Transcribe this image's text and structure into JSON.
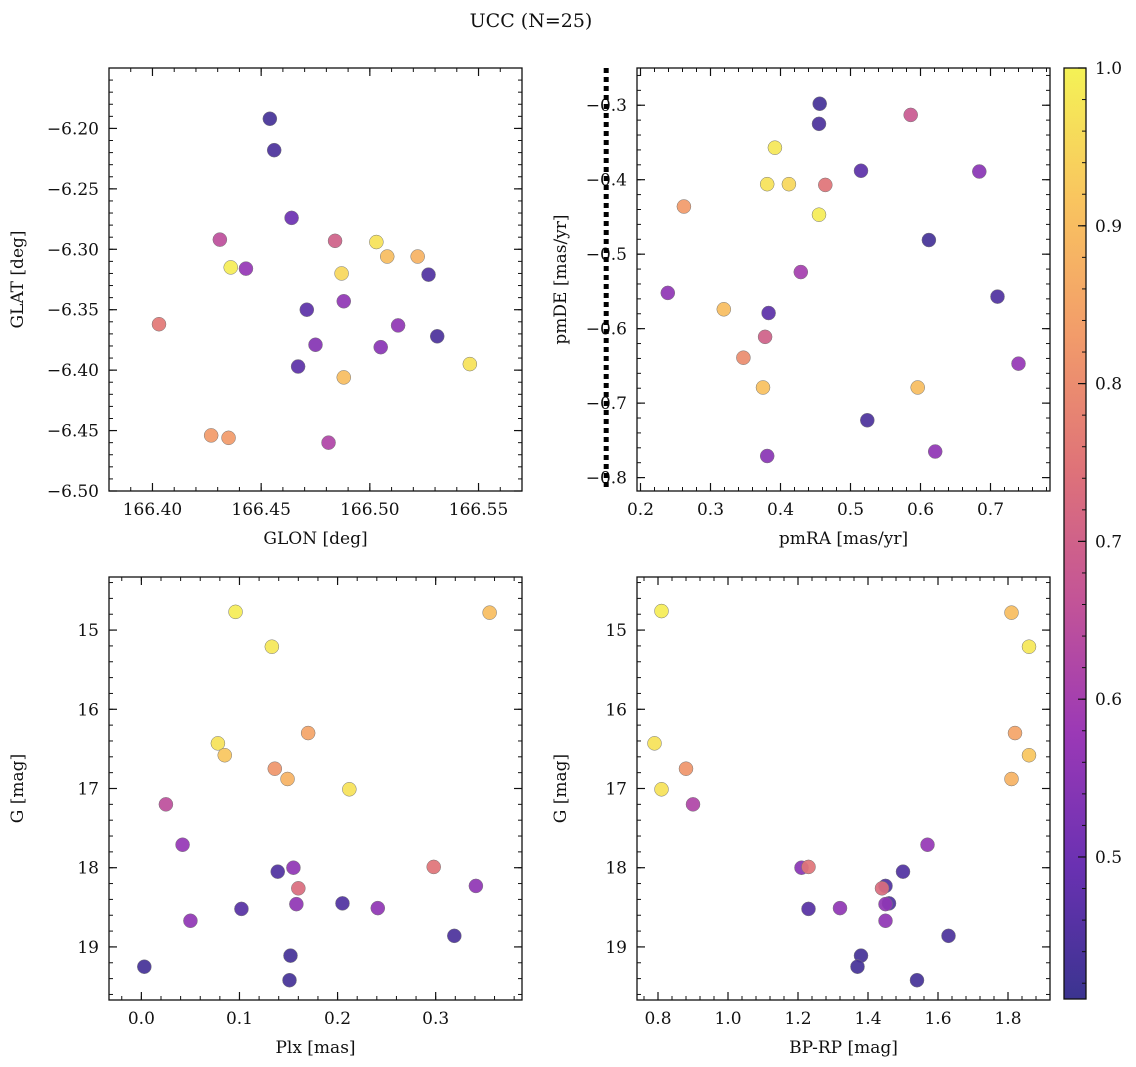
{
  "figure": {
    "title": "UCC (N=25)"
  },
  "colormap": {
    "name": "plasma",
    "stops": [
      "#3b3490",
      "#6a31b2",
      "#9b39b6",
      "#c35497",
      "#df7378",
      "#f29c6a",
      "#f9c45f",
      "#f4f256"
    ],
    "range": [
      0.41,
      1.0
    ],
    "ticks": [
      0.5,
      0.6,
      0.7,
      0.8,
      0.9,
      1.0
    ],
    "tick_labels": [
      "0.5",
      "0.6",
      "0.7",
      "0.8",
      "0.9",
      "1.0"
    ]
  },
  "guide_line": {
    "panel": 2,
    "x": 0.151,
    "style": "dotted",
    "color": "#000000"
  },
  "chart_data": [
    {
      "type": "scatter",
      "xlabel": "GLON [deg]",
      "ylabel": "GLAT [deg]",
      "xlim": [
        166.38,
        166.57
      ],
      "ylim": [
        -6.5,
        -6.15
      ],
      "y_inverted": false,
      "xticks": [
        166.4,
        166.45,
        166.5,
        166.55
      ],
      "xtick_labels": [
        "166.40",
        "166.45",
        "166.50",
        "166.55"
      ],
      "yticks": [
        -6.5,
        -6.45,
        -6.4,
        -6.35,
        -6.3,
        -6.25,
        -6.2
      ],
      "ytick_labels": [
        "−6.50",
        "−6.45",
        "−6.40",
        "−6.35",
        "−6.30",
        "−6.25",
        "−6.20"
      ],
      "points": [
        {
          "x": 166.454,
          "y": -6.192,
          "c": 0.43
        },
        {
          "x": 166.456,
          "y": -6.218,
          "c": 0.44
        },
        {
          "x": 166.464,
          "y": -6.274,
          "c": 0.5
        },
        {
          "x": 166.431,
          "y": -6.292,
          "c": 0.65
        },
        {
          "x": 166.484,
          "y": -6.293,
          "c": 0.7
        },
        {
          "x": 166.503,
          "y": -6.294,
          "c": 0.97
        },
        {
          "x": 166.508,
          "y": -6.306,
          "c": 0.9
        },
        {
          "x": 166.522,
          "y": -6.306,
          "c": 0.88
        },
        {
          "x": 166.436,
          "y": -6.315,
          "c": 0.99
        },
        {
          "x": 166.443,
          "y": -6.316,
          "c": 0.57
        },
        {
          "x": 166.487,
          "y": -6.32,
          "c": 0.95
        },
        {
          "x": 166.527,
          "y": -6.321,
          "c": 0.45
        },
        {
          "x": 166.488,
          "y": -6.343,
          "c": 0.56
        },
        {
          "x": 166.471,
          "y": -6.35,
          "c": 0.47
        },
        {
          "x": 166.403,
          "y": -6.362,
          "c": 0.76
        },
        {
          "x": 166.513,
          "y": -6.363,
          "c": 0.56
        },
        {
          "x": 166.531,
          "y": -6.372,
          "c": 0.44
        },
        {
          "x": 166.475,
          "y": -6.379,
          "c": 0.54
        },
        {
          "x": 166.505,
          "y": -6.381,
          "c": 0.55
        },
        {
          "x": 166.546,
          "y": -6.395,
          "c": 0.97
        },
        {
          "x": 166.467,
          "y": -6.397,
          "c": 0.47
        },
        {
          "x": 166.488,
          "y": -6.406,
          "c": 0.9
        },
        {
          "x": 166.427,
          "y": -6.454,
          "c": 0.83
        },
        {
          "x": 166.435,
          "y": -6.456,
          "c": 0.83
        },
        {
          "x": 166.481,
          "y": -6.46,
          "c": 0.62
        }
      ]
    },
    {
      "type": "scatter",
      "xlabel": "pmRA [mas/yr]",
      "ylabel": "pmDE [mas/yr]",
      "xlim": [
        0.195,
        0.785
      ],
      "ylim": [
        -0.818,
        -0.25
      ],
      "y_inverted": false,
      "xticks": [
        0.2,
        0.3,
        0.4,
        0.5,
        0.6,
        0.7
      ],
      "xtick_labels": [
        "0.2",
        "0.3",
        "0.4",
        "0.5",
        "0.6",
        "0.7"
      ],
      "yticks": [
        -0.8,
        -0.7,
        -0.6,
        -0.5,
        -0.4,
        -0.3
      ],
      "ytick_labels": [
        "−0.8",
        "−0.7",
        "−0.6",
        "−0.5",
        "−0.4",
        "−0.3"
      ],
      "points": [
        {
          "x": 0.456,
          "y": -0.298,
          "c": 0.43
        },
        {
          "x": 0.586,
          "y": -0.313,
          "c": 0.68
        },
        {
          "x": 0.455,
          "y": -0.325,
          "c": 0.44
        },
        {
          "x": 0.392,
          "y": -0.357,
          "c": 0.98
        },
        {
          "x": 0.515,
          "y": -0.388,
          "c": 0.47
        },
        {
          "x": 0.684,
          "y": -0.389,
          "c": 0.55
        },
        {
          "x": 0.381,
          "y": -0.406,
          "c": 0.97
        },
        {
          "x": 0.412,
          "y": -0.406,
          "c": 0.95
        },
        {
          "x": 0.464,
          "y": -0.407,
          "c": 0.75
        },
        {
          "x": 0.262,
          "y": -0.436,
          "c": 0.83
        },
        {
          "x": 0.455,
          "y": -0.447,
          "c": 0.99
        },
        {
          "x": 0.612,
          "y": -0.481,
          "c": 0.43
        },
        {
          "x": 0.429,
          "y": -0.524,
          "c": 0.6
        },
        {
          "x": 0.239,
          "y": -0.552,
          "c": 0.56
        },
        {
          "x": 0.71,
          "y": -0.557,
          "c": 0.45
        },
        {
          "x": 0.319,
          "y": -0.574,
          "c": 0.9
        },
        {
          "x": 0.383,
          "y": -0.579,
          "c": 0.47
        },
        {
          "x": 0.378,
          "y": -0.611,
          "c": 0.7
        },
        {
          "x": 0.347,
          "y": -0.639,
          "c": 0.8
        },
        {
          "x": 0.74,
          "y": -0.647,
          "c": 0.57
        },
        {
          "x": 0.375,
          "y": -0.679,
          "c": 0.91
        },
        {
          "x": 0.596,
          "y": -0.679,
          "c": 0.9
        },
        {
          "x": 0.524,
          "y": -0.723,
          "c": 0.44
        },
        {
          "x": 0.621,
          "y": -0.765,
          "c": 0.56
        },
        {
          "x": 0.381,
          "y": -0.771,
          "c": 0.55
        }
      ]
    },
    {
      "type": "scatter",
      "xlabel": "Plx [mas]",
      "ylabel": "G [mag]",
      "xlim": [
        -0.033,
        0.388
      ],
      "ylim": [
        14.33,
        19.67
      ],
      "y_inverted": true,
      "xticks": [
        0.0,
        0.1,
        0.2,
        0.3
      ],
      "xtick_labels": [
        "0.0",
        "0.1",
        "0.2",
        "0.3"
      ],
      "yticks": [
        15,
        16,
        17,
        18,
        19
      ],
      "ytick_labels": [
        "15",
        "16",
        "17",
        "18",
        "19"
      ],
      "points": [
        {
          "x": 0.096,
          "y": 14.77,
          "c": 0.99
        },
        {
          "x": 0.355,
          "y": 14.78,
          "c": 0.9
        },
        {
          "x": 0.133,
          "y": 15.21,
          "c": 0.98
        },
        {
          "x": 0.17,
          "y": 16.3,
          "c": 0.85
        },
        {
          "x": 0.078,
          "y": 16.43,
          "c": 0.97
        },
        {
          "x": 0.085,
          "y": 16.58,
          "c": 0.92
        },
        {
          "x": 0.136,
          "y": 16.75,
          "c": 0.82
        },
        {
          "x": 0.149,
          "y": 16.88,
          "c": 0.88
        },
        {
          "x": 0.212,
          "y": 17.01,
          "c": 0.97
        },
        {
          "x": 0.025,
          "y": 17.2,
          "c": 0.65
        },
        {
          "x": 0.042,
          "y": 17.71,
          "c": 0.57
        },
        {
          "x": 0.155,
          "y": 18.0,
          "c": 0.56
        },
        {
          "x": 0.298,
          "y": 17.99,
          "c": 0.75
        },
        {
          "x": 0.139,
          "y": 18.05,
          "c": 0.45
        },
        {
          "x": 0.341,
          "y": 18.23,
          "c": 0.56
        },
        {
          "x": 0.16,
          "y": 18.26,
          "c": 0.73
        },
        {
          "x": 0.205,
          "y": 18.45,
          "c": 0.45
        },
        {
          "x": 0.158,
          "y": 18.46,
          "c": 0.56
        },
        {
          "x": 0.241,
          "y": 18.51,
          "c": 0.56
        },
        {
          "x": 0.102,
          "y": 18.52,
          "c": 0.46
        },
        {
          "x": 0.05,
          "y": 18.67,
          "c": 0.56
        },
        {
          "x": 0.319,
          "y": 18.86,
          "c": 0.44
        },
        {
          "x": 0.152,
          "y": 19.11,
          "c": 0.43
        },
        {
          "x": 0.003,
          "y": 19.25,
          "c": 0.43
        },
        {
          "x": 0.151,
          "y": 19.42,
          "c": 0.43
        }
      ]
    },
    {
      "type": "scatter",
      "xlabel": "BP-RP [mag]",
      "ylabel": "G [mag]",
      "xlim": [
        0.74,
        1.92
      ],
      "ylim": [
        14.33,
        19.67
      ],
      "y_inverted": true,
      "xticks": [
        0.8,
        1.0,
        1.2,
        1.4,
        1.6,
        1.8
      ],
      "xtick_labels": [
        "0.8",
        "1.0",
        "1.2",
        "1.4",
        "1.6",
        "1.8"
      ],
      "yticks": [
        15,
        16,
        17,
        18,
        19
      ],
      "ytick_labels": [
        "15",
        "16",
        "17",
        "18",
        "19"
      ],
      "points": [
        {
          "x": 0.81,
          "y": 14.76,
          "c": 0.99
        },
        {
          "x": 1.81,
          "y": 14.78,
          "c": 0.9
        },
        {
          "x": 1.86,
          "y": 15.21,
          "c": 0.98
        },
        {
          "x": 1.82,
          "y": 16.3,
          "c": 0.85
        },
        {
          "x": 0.79,
          "y": 16.43,
          "c": 0.97
        },
        {
          "x": 1.86,
          "y": 16.58,
          "c": 0.92
        },
        {
          "x": 0.88,
          "y": 16.75,
          "c": 0.82
        },
        {
          "x": 1.81,
          "y": 16.88,
          "c": 0.88
        },
        {
          "x": 0.81,
          "y": 17.01,
          "c": 0.97
        },
        {
          "x": 0.9,
          "y": 17.2,
          "c": 0.62
        },
        {
          "x": 1.57,
          "y": 17.71,
          "c": 0.57
        },
        {
          "x": 1.21,
          "y": 18.0,
          "c": 0.55
        },
        {
          "x": 1.23,
          "y": 17.99,
          "c": 0.75
        },
        {
          "x": 1.5,
          "y": 18.05,
          "c": 0.45
        },
        {
          "x": 1.45,
          "y": 18.23,
          "c": 0.45
        },
        {
          "x": 1.44,
          "y": 18.26,
          "c": 0.73
        },
        {
          "x": 1.46,
          "y": 18.45,
          "c": 0.45
        },
        {
          "x": 1.45,
          "y": 18.46,
          "c": 0.56
        },
        {
          "x": 1.32,
          "y": 18.51,
          "c": 0.56
        },
        {
          "x": 1.23,
          "y": 18.52,
          "c": 0.46
        },
        {
          "x": 1.45,
          "y": 18.67,
          "c": 0.56
        },
        {
          "x": 1.63,
          "y": 18.86,
          "c": 0.44
        },
        {
          "x": 1.38,
          "y": 19.11,
          "c": 0.43
        },
        {
          "x": 1.37,
          "y": 19.25,
          "c": 0.43
        },
        {
          "x": 1.54,
          "y": 19.42,
          "c": 0.43
        }
      ]
    }
  ]
}
